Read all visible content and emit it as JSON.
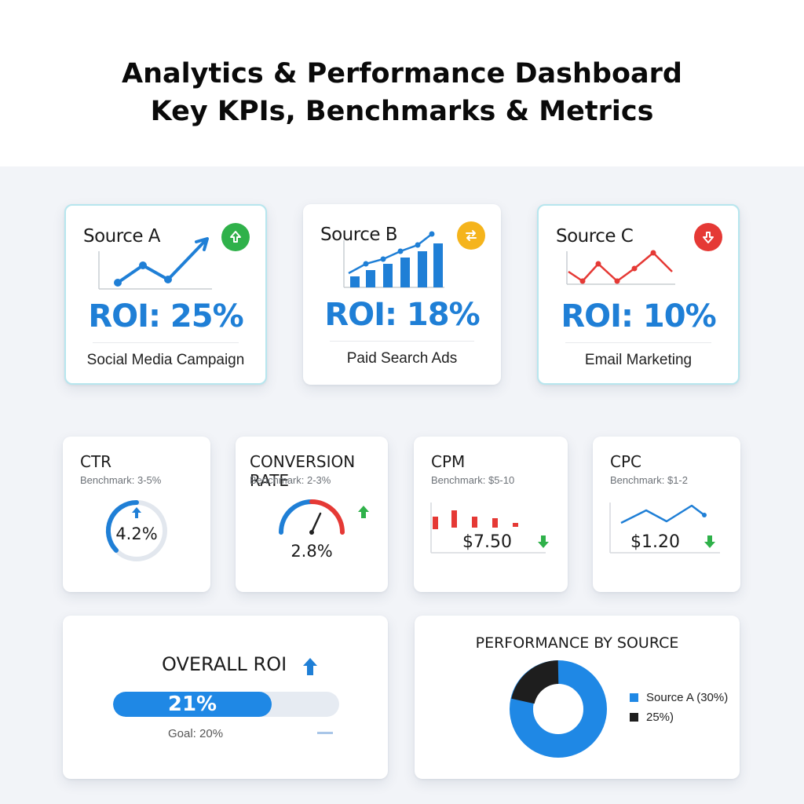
{
  "header": {
    "line1": "Analytics & Performance Dashboard",
    "line2": "Key KPIs, Benchmarks & Metrics"
  },
  "sources": [
    {
      "title": "Source A",
      "roi": "ROI: 25%",
      "subtitle": "Social Media Campaign",
      "trend": "up",
      "badge_color": "#2fb14a",
      "icon": "arrow-up-icon"
    },
    {
      "title": "Source B",
      "roi": "ROI: 18%",
      "subtitle": "Paid Search Ads",
      "trend": "neutral",
      "badge_color": "#f5b41c",
      "icon": "swap-icon"
    },
    {
      "title": "Source C",
      "roi": "ROI: 10%",
      "subtitle": "Email Marketing",
      "trend": "down",
      "badge_color": "#e53935",
      "icon": "arrow-down-icon"
    }
  ],
  "kpis": [
    {
      "title": "CTR",
      "benchmark": "Benchmark: 3-5%",
      "value": "4.2%",
      "visual": "ring"
    },
    {
      "title": "CONVERSION RATE",
      "benchmark": "Benchmark: 2-3%",
      "value": "2.8%",
      "visual": "gauge"
    },
    {
      "title": "CPM",
      "benchmark": "Benchmark: $5-10",
      "value": "$7.50",
      "visual": "bars"
    },
    {
      "title": "CPC",
      "benchmark": "Benchmark: $1-2",
      "value": "$1.20",
      "visual": "line"
    }
  ],
  "overall": {
    "title": "OVERALL ROI",
    "value": "21%",
    "goal": "Goal: 20%",
    "progress_fraction": 0.7
  },
  "performance": {
    "title": "PERFORMANCE BY SOURCE",
    "legend": [
      {
        "label": "Source A (30%)",
        "color": "#1f88e5"
      },
      {
        "label": "25%)",
        "color": "#1e1e1e"
      }
    ]
  },
  "colors": {
    "accent_blue": "#1f7fd6",
    "up_green": "#2fb14a",
    "down_red": "#e53935",
    "neutral_amber": "#f5b41c"
  }
}
